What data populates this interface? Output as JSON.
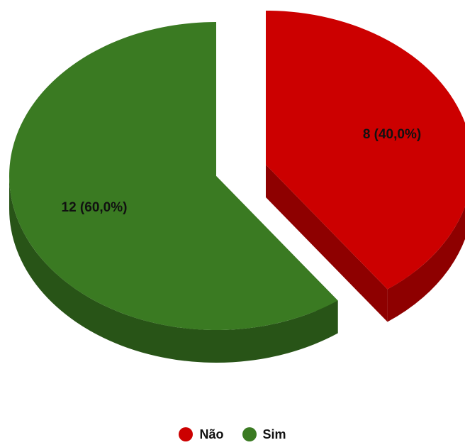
{
  "chart_data": {
    "type": "pie",
    "style": "3d-exploded",
    "slices": [
      {
        "label": "Não",
        "value": 8,
        "percent": "40,0%",
        "display": "8 (40,0%)",
        "color": "#cc0000",
        "side_color": "#8e0000"
      },
      {
        "label": "Sim",
        "value": 12,
        "percent": "60,0%",
        "display": "12 (60,0%)",
        "color": "#3a7a22",
        "side_color": "#285417"
      }
    ],
    "legend_position": "bottom"
  },
  "legend": {
    "items": [
      {
        "label": "Não",
        "color": "#cc0000"
      },
      {
        "label": "Sim",
        "color": "#3a7a22"
      }
    ]
  }
}
